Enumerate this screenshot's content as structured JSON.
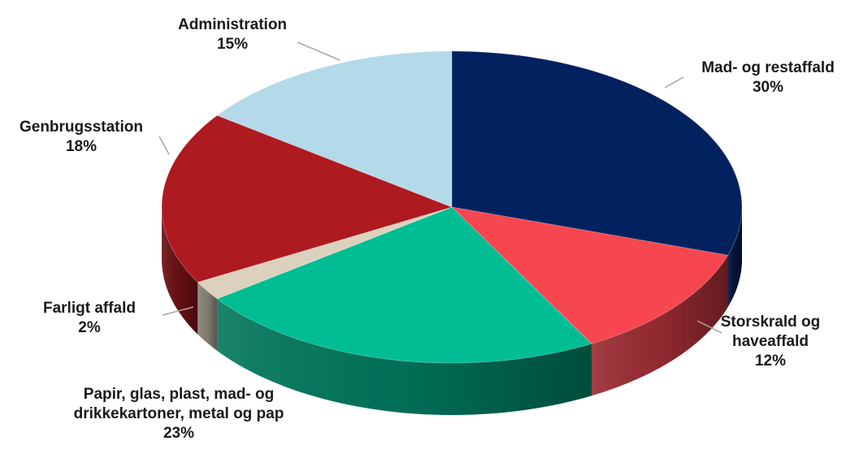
{
  "chart_data": {
    "type": "pie",
    "title": "",
    "style": "3d-exploded-none",
    "slices": [
      {
        "name": "Mad- og restaffald",
        "value": 30,
        "label_lines": [
          "Mad- og restaffald",
          "30%"
        ],
        "color": "#02215f"
      },
      {
        "name": "Storskrald og haveaffald",
        "value": 12,
        "label_lines": [
          "Storskrald og",
          "haveaffald",
          "12%"
        ],
        "color": "#f64650"
      },
      {
        "name": "Papir, glas, plast, mad- og drikkekartoner, metal og pap",
        "value": 23,
        "label_lines": [
          "Papir, glas, plast, mad- og",
          "drikkekartoner, metal og pap",
          "23%"
        ],
        "color": "#00bd93"
      },
      {
        "name": "Farligt affald",
        "value": 2,
        "label_lines": [
          "Farligt affald",
          "2%"
        ],
        "color": "#dcd1bd"
      },
      {
        "name": "Genbrugsstation",
        "value": 18,
        "label_lines": [
          "Genbrugsstation",
          "18%"
        ],
        "color": "#ad1a1f"
      },
      {
        "name": "Administration",
        "value": 15,
        "label_lines": [
          "Administration",
          "15%"
        ],
        "color": "#b4d9e8"
      }
    ]
  }
}
